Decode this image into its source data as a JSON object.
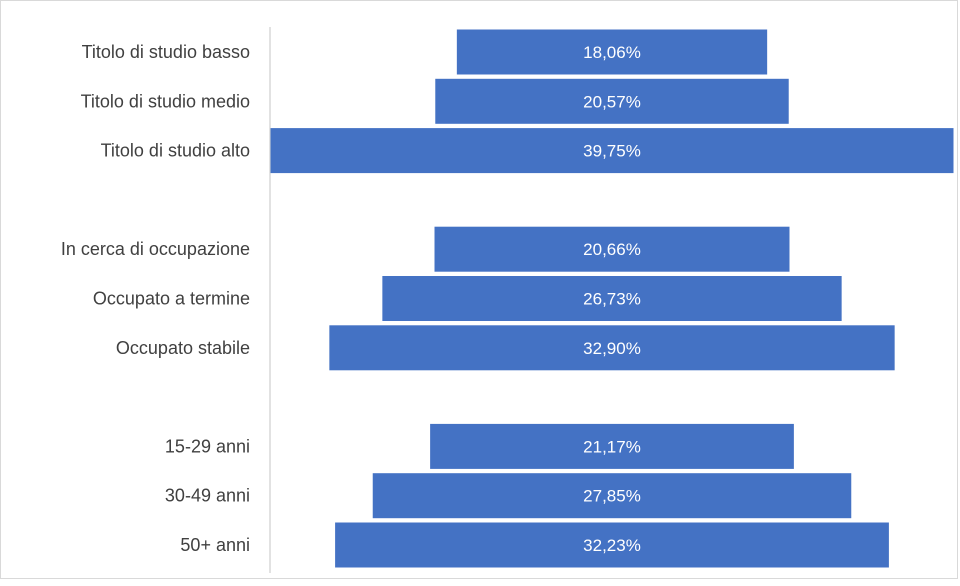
{
  "chart_data": {
    "type": "bar",
    "orientation": "horizontal-centered",
    "categories": [
      "Titolo di studio basso",
      "Titolo di studio medio",
      "Titolo di studio alto",
      "",
      "In cerca di occupazione",
      "Occupato a termine",
      "Occupato stabile",
      "",
      "15-29 anni",
      "30-49 anni",
      "50+ anni"
    ],
    "values": [
      18.06,
      20.57,
      39.75,
      null,
      20.66,
      26.73,
      32.9,
      null,
      21.17,
      27.85,
      32.23
    ],
    "data_labels": [
      "18,06%",
      "20,57%",
      "39,75%",
      "",
      "20,66%",
      "26,73%",
      "32,90%",
      "",
      "21,17%",
      "27,85%",
      "32,23%"
    ],
    "bar_color": "#4472C4",
    "label_color": "#ffffff",
    "category_color": "#404040",
    "axis_color": "#d9d9d9",
    "xlim": [
      0,
      39.75
    ],
    "grid": false,
    "legend": "none"
  }
}
